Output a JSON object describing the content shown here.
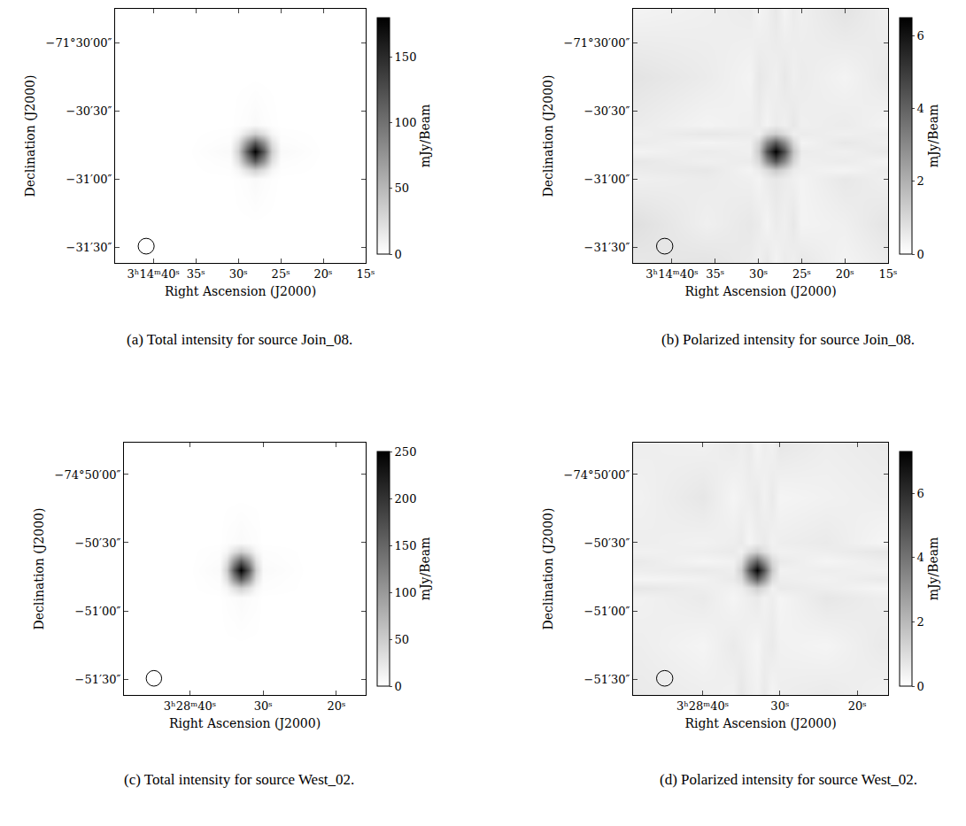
{
  "chart_data": [
    {
      "type": "heatmap",
      "title": "(a) Total intensity for source Join_08.",
      "x_label": "Right Ascension (J2000)",
      "y_label": "Declination (J2000)",
      "colorbar_title": "mJy/Beam",
      "xlim": [
        44.5,
        15
      ],
      "ylim": [
        -97,
        15
      ],
      "xticks": [
        {
          "value": 40,
          "label": "3ʰ14ᵐ40ˢ"
        },
        {
          "value": 35,
          "label": "35ˢ"
        },
        {
          "value": 30,
          "label": "30ˢ"
        },
        {
          "value": 25,
          "label": "25ˢ"
        },
        {
          "value": 20,
          "label": "20ˢ"
        },
        {
          "value": 15,
          "label": "15ˢ"
        }
      ],
      "yticks": [
        {
          "value": 0,
          "label": "−71°30′00″"
        },
        {
          "value": -30,
          "label": "−30′30″"
        },
        {
          "value": -60,
          "label": "−31′00″"
        },
        {
          "value": -90,
          "label": "−31′30″"
        }
      ],
      "colorbar_range": [
        0,
        180
      ],
      "colorbar_ticks": [
        0,
        50,
        100,
        150
      ],
      "x": [
        15,
        20,
        25,
        26,
        27,
        28,
        29,
        30,
        31,
        36,
        44
      ],
      "y": [
        -97,
        -80,
        -60,
        -56,
        -52,
        -48,
        -44,
        -40,
        -36,
        -15,
        14
      ],
      "cells": [
        [
          0,
          0,
          0,
          0,
          0,
          0,
          0,
          0,
          0,
          0,
          0
        ],
        [
          0,
          0,
          0,
          0,
          0,
          0,
          0,
          0,
          0,
          0,
          0
        ],
        [
          0,
          0,
          0,
          1,
          2,
          4,
          2,
          1,
          0,
          0,
          0
        ],
        [
          0,
          0,
          1,
          6,
          22,
          34,
          22,
          6,
          1,
          0,
          0
        ],
        [
          0,
          0,
          2,
          22,
          76,
          117,
          76,
          22,
          2,
          0,
          0
        ],
        [
          0,
          0,
          4,
          34,
          117,
          180,
          117,
          34,
          4,
          0,
          0
        ],
        [
          0,
          0,
          2,
          22,
          76,
          117,
          76,
          22,
          2,
          0,
          0
        ],
        [
          0,
          0,
          1,
          6,
          22,
          34,
          22,
          6,
          1,
          0,
          0
        ],
        [
          0,
          0,
          0,
          1,
          2,
          4,
          2,
          1,
          0,
          0,
          0
        ],
        [
          0,
          0,
          0,
          0,
          0,
          0,
          0,
          0,
          0,
          0,
          0
        ],
        [
          0,
          0,
          0,
          0,
          0,
          0,
          0,
          0,
          0,
          0,
          0
        ]
      ]
    },
    {
      "type": "heatmap",
      "title": "(b) Polarized intensity for source Join_08.",
      "x_label": "Right Ascension (J2000)",
      "y_label": "Declination (J2000)",
      "colorbar_title": "mJy/Beam",
      "xlim": [
        44.5,
        15
      ],
      "ylim": [
        -97,
        15
      ],
      "xticks": [
        {
          "value": 40,
          "label": "3ʰ14ᵐ40ˢ"
        },
        {
          "value": 35,
          "label": "35ˢ"
        },
        {
          "value": 30,
          "label": "30ˢ"
        },
        {
          "value": 25,
          "label": "25ˢ"
        },
        {
          "value": 20,
          "label": "20ˢ"
        },
        {
          "value": 15,
          "label": "15ˢ"
        }
      ],
      "yticks": [
        {
          "value": 0,
          "label": "−71°30′00″"
        },
        {
          "value": -30,
          "label": "−30′30″"
        },
        {
          "value": -60,
          "label": "−31′00″"
        },
        {
          "value": -90,
          "label": "−31′30″"
        }
      ],
      "colorbar_range": [
        0,
        6.5
      ],
      "colorbar_ticks": [
        0,
        2,
        4,
        6
      ],
      "x": [
        15,
        20,
        25,
        26,
        27,
        28,
        29,
        30,
        31,
        36,
        44
      ],
      "y": [
        -97,
        -80,
        -60,
        -56,
        -52,
        -48,
        -44,
        -40,
        -36,
        -15,
        14
      ],
      "cells": [
        [
          0.5,
          0.3,
          0.6,
          0.4,
          0.5,
          0.3,
          0.6,
          0.4,
          0.5,
          0.7,
          0.6
        ],
        [
          0.7,
          0.4,
          0.3,
          0.6,
          0.4,
          0.5,
          0.3,
          0.5,
          0.6,
          0.4,
          0.8
        ],
        [
          0.4,
          0.6,
          0.3,
          0.4,
          0.5,
          0.6,
          0.5,
          0.3,
          0.4,
          0.5,
          0.4
        ],
        [
          0.5,
          0.3,
          0.4,
          0.5,
          1.0,
          1.4,
          0.9,
          0.5,
          0.3,
          0.6,
          0.5
        ],
        [
          0.3,
          0.5,
          0.4,
          1.1,
          3.0,
          4.4,
          2.9,
          1.0,
          0.5,
          0.4,
          0.6
        ],
        [
          0.6,
          0.4,
          0.5,
          1.5,
          4.5,
          6.5,
          4.4,
          1.4,
          0.4,
          0.5,
          0.3
        ],
        [
          0.4,
          0.6,
          0.3,
          1.0,
          2.9,
          4.3,
          3.0,
          1.1,
          0.4,
          0.3,
          0.5
        ],
        [
          0.5,
          0.4,
          0.5,
          0.4,
          0.9,
          1.3,
          1.0,
          0.4,
          0.5,
          0.6,
          0.4
        ],
        [
          0.3,
          0.5,
          0.4,
          0.6,
          0.4,
          0.5,
          0.3,
          0.5,
          0.4,
          0.3,
          0.5
        ],
        [
          0.6,
          0.3,
          0.5,
          0.4,
          0.6,
          0.4,
          0.5,
          0.6,
          0.3,
          0.5,
          0.7
        ],
        [
          0.4,
          0.7,
          0.4,
          0.5,
          0.3,
          0.6,
          0.4,
          0.3,
          0.5,
          0.4,
          0.3
        ]
      ]
    },
    {
      "type": "heatmap",
      "title": "(c) Total intensity for source West_02.",
      "x_label": "Right Ascension (J2000)",
      "y_label": "Declination (J2000)",
      "colorbar_title": "mJy/Beam",
      "xlim": [
        49,
        16
      ],
      "ylim": [
        -97,
        14
      ],
      "xticks": [
        {
          "value": 40,
          "label": "3ʰ28ᵐ40ˢ"
        },
        {
          "value": 30,
          "label": "30ˢ"
        },
        {
          "value": 20,
          "label": "20ˢ"
        }
      ],
      "yticks": [
        {
          "value": 0,
          "label": "−74°50′00″"
        },
        {
          "value": -30,
          "label": "−50′30″"
        },
        {
          "value": -60,
          "label": "−51′00″"
        },
        {
          "value": -90,
          "label": "−51′30″"
        }
      ],
      "colorbar_range": [
        0,
        250
      ],
      "colorbar_ticks": [
        0,
        50,
        100,
        150,
        200,
        250
      ],
      "x": [
        17,
        24,
        30,
        31,
        32,
        33,
        34,
        35,
        36,
        40,
        48
      ],
      "y": [
        -97,
        -75,
        -54,
        -50,
        -46,
        -42,
        -38,
        -34,
        -30,
        -10,
        14
      ],
      "cells": [
        [
          0,
          0,
          0,
          0,
          0,
          0,
          0,
          0,
          0,
          0,
          0
        ],
        [
          0,
          0,
          0,
          0,
          0,
          0,
          0,
          0,
          0,
          0,
          0
        ],
        [
          0,
          0,
          0,
          2,
          3,
          5,
          3,
          2,
          0,
          0,
          0
        ],
        [
          0,
          0,
          2,
          9,
          31,
          48,
          31,
          9,
          2,
          0,
          0
        ],
        [
          0,
          0,
          3,
          31,
          106,
          163,
          106,
          31,
          3,
          0,
          0
        ],
        [
          0,
          0,
          5,
          48,
          163,
          250,
          163,
          48,
          5,
          0,
          0
        ],
        [
          0,
          0,
          3,
          31,
          106,
          163,
          106,
          31,
          3,
          0,
          0
        ],
        [
          0,
          0,
          2,
          9,
          31,
          48,
          31,
          9,
          2,
          0,
          0
        ],
        [
          0,
          0,
          0,
          2,
          3,
          5,
          3,
          2,
          0,
          0,
          0
        ],
        [
          0,
          0,
          0,
          0,
          0,
          0,
          0,
          0,
          0,
          0,
          0
        ],
        [
          0,
          0,
          0,
          0,
          0,
          0,
          0,
          0,
          0,
          0,
          0
        ]
      ]
    },
    {
      "type": "heatmap",
      "title": "(d) Polarized intensity for source West_02.",
      "x_label": "Right Ascension (J2000)",
      "y_label": "Declination (J2000)",
      "colorbar_title": "mJy/Beam",
      "xlim": [
        49,
        16
      ],
      "ylim": [
        -97,
        14
      ],
      "xticks": [
        {
          "value": 40,
          "label": "3ʰ28ᵐ40ˢ"
        },
        {
          "value": 30,
          "label": "30ˢ"
        },
        {
          "value": 20,
          "label": "20ˢ"
        }
      ],
      "yticks": [
        {
          "value": 0,
          "label": "−74°50′00″"
        },
        {
          "value": -30,
          "label": "−50′30″"
        },
        {
          "value": -60,
          "label": "−51′00″"
        },
        {
          "value": -90,
          "label": "−51′30″"
        }
      ],
      "colorbar_range": [
        0,
        7.3
      ],
      "colorbar_ticks": [
        0,
        2,
        4,
        6
      ],
      "x": [
        17,
        24,
        30,
        31,
        32,
        33,
        34,
        35,
        36,
        40,
        48
      ],
      "y": [
        -97,
        -75,
        -54,
        -50,
        -46,
        -42,
        -38,
        -34,
        -30,
        -10,
        14
      ],
      "cells": [
        [
          0.4,
          0.6,
          0.5,
          0.3,
          0.6,
          0.4,
          0.5,
          0.7,
          0.4,
          0.5,
          0.6
        ],
        [
          0.6,
          0.3,
          0.4,
          0.6,
          0.5,
          0.3,
          0.4,
          0.5,
          0.6,
          0.3,
          0.5
        ],
        [
          0.5,
          0.7,
          0.3,
          0.5,
          0.4,
          0.6,
          0.5,
          0.4,
          0.3,
          0.6,
          0.4
        ],
        [
          0.3,
          0.5,
          0.6,
          0.4,
          1.0,
          1.4,
          0.9,
          0.5,
          0.4,
          0.5,
          0.7
        ],
        [
          0.6,
          0.4,
          0.5,
          1.0,
          3.1,
          4.7,
          3.0,
          1.0,
          0.6,
          0.4,
          0.3
        ],
        [
          0.4,
          0.5,
          0.4,
          1.5,
          4.8,
          7.2,
          4.7,
          1.4,
          0.5,
          0.6,
          0.5
        ],
        [
          0.5,
          0.3,
          0.6,
          1.1,
          3.0,
          4.6,
          3.1,
          0.9,
          0.4,
          0.3,
          0.6
        ],
        [
          0.7,
          0.5,
          0.4,
          0.5,
          0.9,
          1.4,
          1.0,
          0.4,
          0.6,
          0.5,
          0.4
        ],
        [
          0.3,
          0.6,
          0.5,
          0.4,
          0.6,
          0.5,
          0.3,
          0.6,
          0.5,
          0.4,
          0.5
        ],
        [
          0.5,
          0.4,
          0.3,
          0.6,
          0.4,
          0.6,
          0.5,
          0.4,
          0.3,
          0.7,
          0.4
        ],
        [
          0.6,
          0.5,
          0.7,
          0.4,
          0.5,
          0.3,
          0.6,
          0.5,
          0.6,
          0.4,
          0.5
        ]
      ]
    }
  ]
}
